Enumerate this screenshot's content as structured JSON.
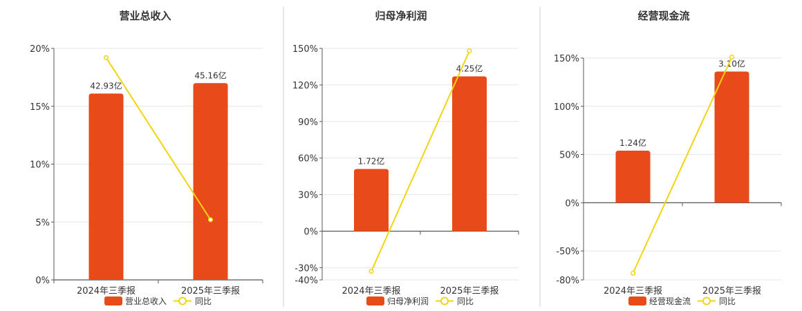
{
  "colors": {
    "bar": "#e84a1a",
    "line": "#f2d40f",
    "grid": "#e6e6e6",
    "axis": "#555555",
    "divider": "#cccccc"
  },
  "legend_line_label": "同比",
  "chart_data": [
    {
      "type": "bar",
      "title": "营业总收入",
      "categories": [
        "2024年三季报",
        "2025年三季报"
      ],
      "series": [
        {
          "name": "营业总收入",
          "type": "bar",
          "value_labels": [
            "42.93亿",
            "45.16亿"
          ],
          "values_pct_axis": [
            16.1,
            17.0
          ]
        },
        {
          "name": "同比",
          "type": "line",
          "values": [
            19.2,
            5.2
          ]
        }
      ],
      "yticks": [
        "20%",
        "15%",
        "10%",
        "5%",
        "0%"
      ],
      "ylim": [
        0,
        20
      ],
      "legend": "bottom"
    },
    {
      "type": "bar",
      "title": "归母净利润",
      "categories": [
        "2024年三季报",
        "2025年三季报"
      ],
      "series": [
        {
          "name": "归母净利润",
          "type": "bar",
          "value_labels": [
            "1.72亿",
            "4.25亿"
          ],
          "values_pct_axis": [
            51,
            127
          ]
        },
        {
          "name": "同比",
          "type": "line",
          "values": [
            -33,
            148
          ]
        }
      ],
      "yticks": [
        "150%",
        "120%",
        "90%",
        "60%",
        "30%",
        "0%",
        "-30%",
        "-40%"
      ],
      "ylim": [
        -40,
        150
      ],
      "legend": "bottom"
    },
    {
      "type": "bar",
      "title": "经营现金流",
      "categories": [
        "2024年三季报",
        "2025年三季报"
      ],
      "series": [
        {
          "name": "经营现金流",
          "type": "bar",
          "value_labels": [
            "1.24亿",
            "3.10亿"
          ],
          "values_pct_axis": [
            54,
            136
          ]
        },
        {
          "name": "同比",
          "type": "line",
          "values": [
            -73,
            151
          ]
        }
      ],
      "yticks": [
        "150%",
        "100%",
        "50%",
        "0%",
        "-50%",
        "-80%"
      ],
      "ylim": [
        -80,
        150
      ],
      "legend": "bottom"
    }
  ]
}
